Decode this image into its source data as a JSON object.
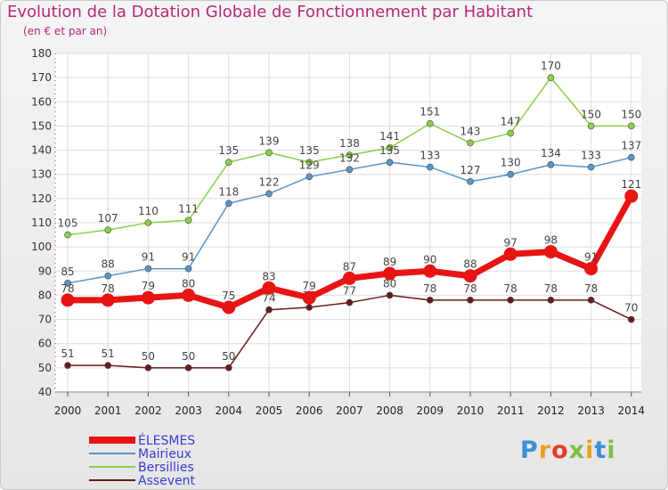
{
  "title": "Evolution de la Dotation Globale de Fonctionnement par Habitant",
  "subtitle": "(en € et par an)",
  "logo": {
    "text": "Proxiti",
    "colors": [
      "#3b8fd8",
      "#e8a21f",
      "#e03c2c",
      "#7bc043",
      "#e8a21f",
      "#3b8fd8",
      "#7bc043"
    ]
  },
  "chart_data": {
    "type": "line",
    "x": [
      2000,
      2001,
      2002,
      2003,
      2004,
      2005,
      2006,
      2007,
      2008,
      2009,
      2010,
      2011,
      2012,
      2013,
      2014
    ],
    "ylim": [
      40,
      180
    ],
    "yticks": [
      40,
      50,
      60,
      70,
      80,
      90,
      100,
      110,
      120,
      130,
      140,
      150,
      160,
      170,
      180
    ],
    "grid": true,
    "legend_position": "bottom-left",
    "series": [
      {
        "name": "Bersillies",
        "color": "#8ccf4a",
        "values": [
          105,
          107,
          110,
          111,
          135,
          139,
          135,
          138,
          141,
          151,
          143,
          147,
          170,
          150,
          150
        ]
      },
      {
        "name": "Mairieux",
        "color": "#5a95c8",
        "values": [
          85,
          88,
          91,
          91,
          118,
          122,
          129,
          132,
          135,
          133,
          127,
          130,
          134,
          133,
          137
        ]
      },
      {
        "name": "Assevent",
        "color": "#6b1a1a",
        "values": [
          51,
          51,
          50,
          50,
          50,
          74,
          75,
          77,
          80,
          78,
          78,
          78,
          78,
          78,
          70
        ]
      },
      {
        "name": "ÉLESMES",
        "color": "#e81414",
        "values": [
          78,
          78,
          79,
          80,
          75,
          83,
          79,
          87,
          89,
          90,
          88,
          97,
          98,
          91,
          121
        ]
      }
    ],
    "legend_order": [
      "ÉLESMES",
      "Mairieux",
      "Bersillies",
      "Assevent"
    ],
    "legend_color": "#3a3ad0"
  }
}
